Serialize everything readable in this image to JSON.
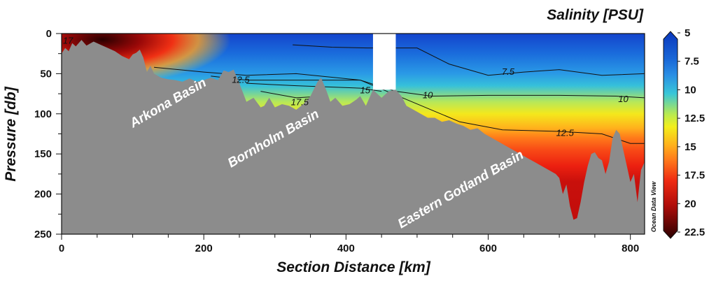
{
  "chart_data": {
    "type": "heatmap",
    "title": "Salinity [PSU]",
    "xlabel": "Section Distance [km]",
    "ylabel": "Pressure [db]",
    "xlim": [
      0,
      820
    ],
    "ylim": [
      250,
      0
    ],
    "x_ticks": [
      0,
      200,
      400,
      600,
      800
    ],
    "y_ticks": [
      0,
      50,
      100,
      150,
      200,
      250
    ],
    "colorbar": {
      "ticks": [
        5,
        7.5,
        10,
        12.5,
        15,
        17.5,
        20,
        22.5
      ],
      "colors": [
        "#0a37bd",
        "#2a8ee4",
        "#38c6d8",
        "#f2ef1c",
        "#ff7a1c",
        "#ef2b12",
        "#b00d0a",
        "#2a0000"
      ]
    },
    "basin_labels": [
      "Arkona Basin",
      "Bornholm Basin",
      "Eastern Gotland Basin"
    ],
    "seafloor_color": "#8c8c8c",
    "no_data_gap_km": [
      438,
      470
    ],
    "contours": [
      {
        "label": "7.5",
        "x": [
          325,
          380,
          430,
          500,
          545,
          600,
          650,
          700,
          760,
          820
        ],
        "y": [
          14,
          17,
          18,
          18,
          38,
          52,
          48,
          45,
          52,
          50
        ]
      },
      {
        "label": "10",
        "x": [
          130,
          200,
          260,
          330,
          420,
          470,
          520,
          600,
          700,
          780,
          820
        ],
        "y": [
          42,
          48,
          52,
          50,
          58,
          72,
          78,
          77,
          77,
          78,
          80
        ]
      },
      {
        "label": "12.5",
        "x": [
          210,
          260,
          330,
          420,
          560,
          620,
          700,
          760,
          800,
          820
        ],
        "y": [
          53,
          58,
          58,
          58,
          110,
          120,
          122,
          125,
          137,
          137
        ]
      },
      {
        "label": "15",
        "x": [
          260,
          330,
          420,
          450
        ],
        "y": [
          62,
          65,
          68,
          72
        ]
      },
      {
        "label": "17.5",
        "x": [
          280,
          330,
          370
        ],
        "y": [
          72,
          80,
          78
        ]
      }
    ],
    "contour_labels": [
      {
        "label": "17",
        "x": 9,
        "y": 9
      },
      {
        "label": "12.5",
        "x": 252,
        "y": 58
      },
      {
        "label": "17.5",
        "x": 335,
        "y": 86
      },
      {
        "label": "15",
        "x": 427,
        "y": 71
      },
      {
        "label": "10",
        "x": 515,
        "y": 77
      },
      {
        "label": "7.5",
        "x": 628,
        "y": 48
      },
      {
        "label": "10",
        "x": 790,
        "y": 82
      },
      {
        "label": "12.5",
        "x": 708,
        "y": 124
      }
    ],
    "seafloor": {
      "x": [
        0,
        5,
        10,
        15,
        20,
        28,
        35,
        45,
        55,
        65,
        75,
        85,
        95,
        100,
        105,
        110,
        115,
        120,
        125,
        130,
        140,
        150,
        160,
        170,
        180,
        190,
        200,
        210,
        220,
        228,
        235,
        242,
        250,
        260,
        270,
        280,
        285,
        292,
        300,
        310,
        320,
        330,
        340,
        350,
        360,
        365,
        372,
        378,
        385,
        395,
        405,
        410,
        415,
        420,
        428,
        438,
        450,
        460,
        470,
        478,
        485,
        495,
        505,
        515,
        525,
        535,
        545,
        555,
        565,
        575,
        585,
        595,
        605,
        615,
        625,
        635,
        645,
        655,
        665,
        675,
        685,
        695,
        700,
        705,
        710,
        715,
        720,
        725,
        730,
        735,
        740,
        745,
        750,
        755,
        760,
        765,
        770,
        775,
        780,
        785,
        790,
        795,
        800,
        805,
        810,
        815,
        820
      ],
      "y": [
        25,
        18,
        22,
        12,
        16,
        8,
        15,
        10,
        14,
        18,
        22,
        28,
        32,
        26,
        24,
        20,
        30,
        48,
        40,
        50,
        55,
        57,
        58,
        60,
        56,
        60,
        58,
        55,
        58,
        46,
        48,
        45,
        62,
        85,
        80,
        92,
        90,
        80,
        92,
        88,
        90,
        95,
        88,
        78,
        60,
        55,
        70,
        85,
        80,
        90,
        88,
        85,
        82,
        78,
        90,
        70,
        80,
        72,
        70,
        78,
        90,
        95,
        100,
        105,
        105,
        110,
        108,
        112,
        115,
        120,
        118,
        125,
        130,
        135,
        140,
        145,
        150,
        155,
        160,
        165,
        170,
        175,
        180,
        200,
        188,
        215,
        232,
        230,
        210,
        185,
        165,
        150,
        148,
        155,
        158,
        175,
        160,
        130,
        120,
        125,
        145,
        165,
        185,
        175,
        210,
        170,
        160
      ]
    }
  },
  "credit": "Ocean Data View"
}
